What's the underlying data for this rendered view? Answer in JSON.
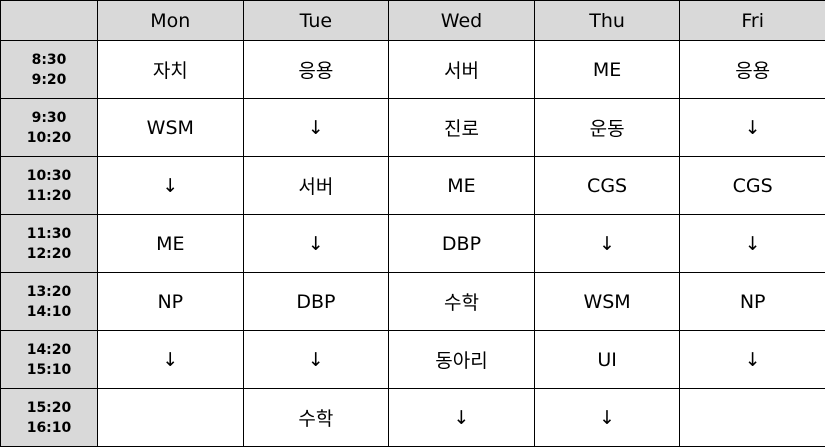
{
  "days": [
    "Mon",
    "Tue",
    "Wed",
    "Thu",
    "Fri"
  ],
  "rows": [
    {
      "start": "8:30",
      "end": "9:20",
      "cells": [
        "자치",
        "응용",
        "서버",
        "ME",
        "응용"
      ]
    },
    {
      "start": "9:30",
      "end": "10:20",
      "cells": [
        "WSM",
        "↓",
        "진로",
        "운동",
        "↓"
      ]
    },
    {
      "start": "10:30",
      "end": "11:20",
      "cells": [
        "↓",
        "서버",
        "ME",
        "CGS",
        "CGS"
      ]
    },
    {
      "start": "11:30",
      "end": "12:20",
      "cells": [
        "ME",
        "↓",
        "DBP",
        "↓",
        "↓"
      ]
    },
    {
      "start": "13:20",
      "end": "14:10",
      "cells": [
        "NP",
        "DBP",
        "수학",
        "WSM",
        "NP"
      ]
    },
    {
      "start": "14:20",
      "end": "15:10",
      "cells": [
        "↓",
        "↓",
        "동아리",
        "UI",
        "↓"
      ]
    },
    {
      "start": "15:20",
      "end": "16:10",
      "cells": [
        "",
        "수학",
        "↓",
        "↓",
        ""
      ]
    }
  ],
  "colors": {
    "header_bg": "#d9d9d9",
    "cell_bg": "#ffffff",
    "border": "#000000"
  }
}
